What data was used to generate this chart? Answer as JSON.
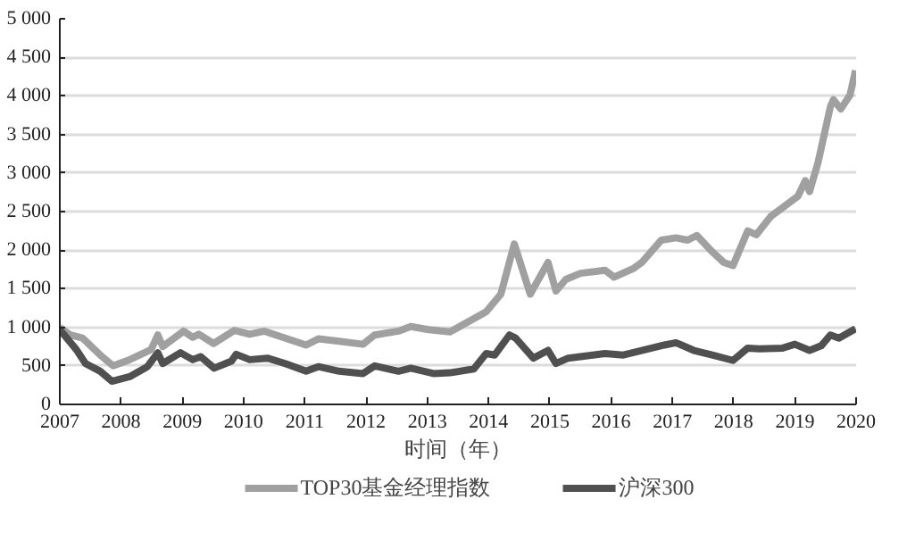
{
  "chart_data": {
    "type": "line",
    "xlabel": "时间（年）",
    "xlim": [
      2007,
      2020
    ],
    "xticks": [
      2007,
      2008,
      2009,
      2010,
      2011,
      2012,
      2013,
      2014,
      2015,
      2016,
      2017,
      2018,
      2019,
      2020
    ],
    "ylim": [
      0,
      5000
    ],
    "yticks": [
      {
        "value": 0,
        "label": "0"
      },
      {
        "value": 500,
        "label": "500"
      },
      {
        "value": 1000,
        "label": "1 000"
      },
      {
        "value": 1500,
        "label": "1 500"
      },
      {
        "value": 2000,
        "label": "2 000"
      },
      {
        "value": 2500,
        "label": "2 500"
      },
      {
        "value": 3000,
        "label": "3 000"
      },
      {
        "value": 3500,
        "label": "3 500"
      },
      {
        "value": 4000,
        "label": "4 000"
      },
      {
        "value": 4500,
        "label": "4 500"
      },
      {
        "value": 5000,
        "label": "5 000"
      }
    ],
    "grid": "y",
    "legend": "bottom",
    "marker": "none",
    "line_style": "solid",
    "series": [
      {
        "name": "TOP30基金经理指数",
        "color": "#a0a0a0",
        "x": [
          2007,
          2007.17,
          2007.37,
          2007.66,
          2007.87,
          2008.14,
          2008.49,
          2008.6,
          2008.68,
          2009.02,
          2009.17,
          2009.27,
          2009.51,
          2009.85,
          2010.1,
          2010.34,
          2010.68,
          2011.02,
          2011.22,
          2011.56,
          2011.95,
          2012.14,
          2012.53,
          2012.73,
          2013.02,
          2013.37,
          2013.96,
          2014.2,
          2014.42,
          2014.68,
          2014.97,
          2015.1,
          2015.26,
          2015.5,
          2015.9,
          2016.05,
          2016.36,
          2016.5,
          2016.82,
          2017.06,
          2017.25,
          2017.4,
          2017.65,
          2017.84,
          2017.99,
          2018.23,
          2018.37,
          2018.61,
          2018.85,
          2019.05,
          2019.17,
          2019.24,
          2019.38,
          2019.58,
          2019.63,
          2019.75,
          2019.9,
          2019.99
        ],
        "values": [
          1000,
          900,
          860,
          640,
          500,
          580,
          710,
          900,
          750,
          950,
          870,
          910,
          790,
          960,
          910,
          950,
          860,
          770,
          850,
          820,
          780,
          900,
          950,
          1010,
          970,
          940,
          1200,
          1430,
          2080,
          1430,
          1840,
          1470,
          1620,
          1700,
          1740,
          1650,
          1760,
          1840,
          2130,
          2160,
          2130,
          2190,
          1980,
          1840,
          1800,
          2250,
          2200,
          2440,
          2580,
          2700,
          2900,
          2760,
          3140,
          3860,
          3950,
          3830,
          4010,
          4330
        ]
      },
      {
        "name": "沪深300",
        "color": "#505050",
        "x": [
          2007,
          2007.27,
          2007.42,
          2007.66,
          2007.85,
          2008.14,
          2008.43,
          2008.6,
          2008.68,
          2008.97,
          2009.17,
          2009.3,
          2009.52,
          2009.8,
          2009.88,
          2010.1,
          2010.39,
          2010.68,
          2011.02,
          2011.22,
          2011.56,
          2011.95,
          2012.14,
          2012.53,
          2012.73,
          2013.1,
          2013.37,
          2013.76,
          2013.96,
          2014.1,
          2014.34,
          2014.44,
          2014.73,
          2014.97,
          2015.1,
          2015.3,
          2015.9,
          2016.2,
          2016.5,
          2016.87,
          2017.06,
          2017.35,
          2017.65,
          2017.99,
          2018.23,
          2018.42,
          2018.8,
          2019.0,
          2019.24,
          2019.43,
          2019.58,
          2019.72,
          2019.99
        ],
        "values": [
          970,
          710,
          530,
          430,
          300,
          360,
          490,
          670,
          530,
          670,
          580,
          620,
          470,
          560,
          650,
          580,
          600,
          530,
          430,
          490,
          430,
          400,
          500,
          430,
          470,
          400,
          410,
          460,
          660,
          640,
          900,
          860,
          600,
          700,
          530,
          600,
          660,
          640,
          700,
          770,
          800,
          700,
          640,
          570,
          730,
          720,
          730,
          780,
          700,
          760,
          900,
          860,
          980
        ]
      }
    ]
  }
}
